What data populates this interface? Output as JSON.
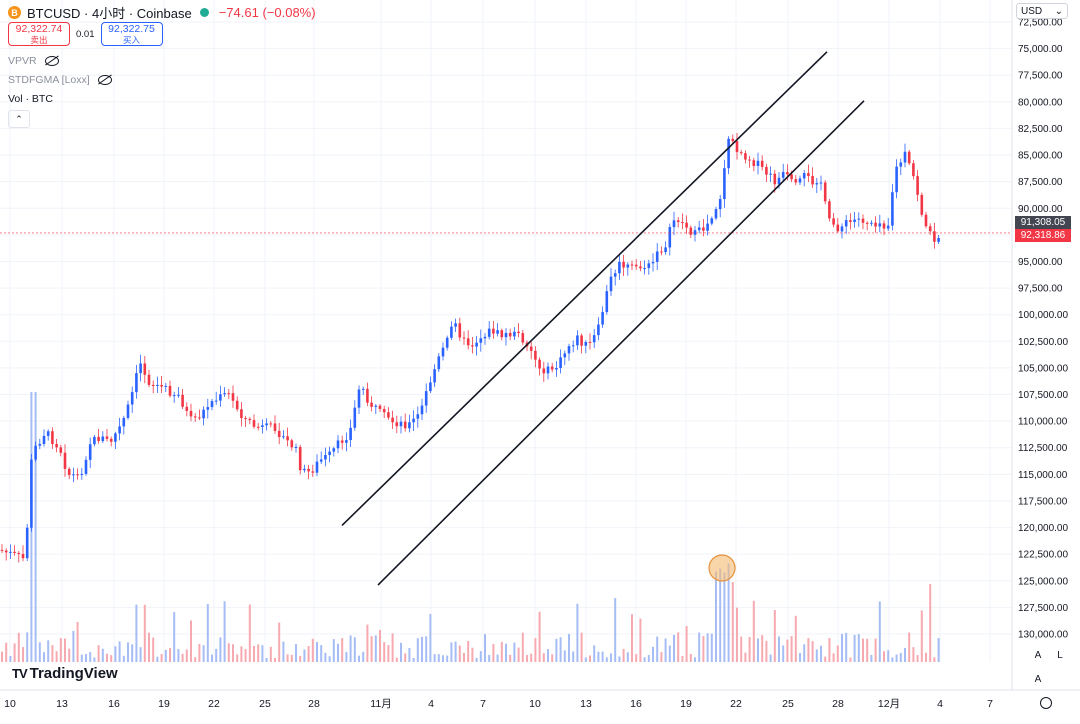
{
  "header": {
    "symbol_title": "BTCUSD · 4小时 · Coinbase",
    "change": "−74.61 (−0.08%)",
    "btc_icon": "B",
    "status_color": "#22ab94"
  },
  "trade": {
    "sell_price": "92,322.74",
    "sell_label": "卖出",
    "spread": "0.01",
    "buy_price": "92,322.75",
    "buy_label": "买入"
  },
  "indicators": [
    {
      "label": "VPVR",
      "icon": "eye-off-icon"
    },
    {
      "label": "STDFGMA [Loxx]",
      "icon": "eye-off-icon"
    },
    {
      "label": "Vol · BTC"
    }
  ],
  "collapse_glyph": "⌃",
  "currency": {
    "label": "USD",
    "glyph": "⌄"
  },
  "price_axis": {
    "ticks": [
      "72,500.00",
      "75,000.00",
      "77,500.00",
      "80,000.00",
      "82,500.00",
      "85,000.00",
      "87,500.00",
      "90,000.00",
      "92,500.00",
      "95,000.00",
      "97,500.00",
      "100,000.00",
      "102,500.00",
      "105,000.00",
      "107,500.00",
      "110,000.00",
      "112,500.00",
      "115,000.00",
      "117,500.00",
      "120,000.00",
      "122,500.00",
      "125,000.00",
      "127,500.00",
      "130,000.00"
    ],
    "last_price_tag": "91,308.05",
    "current_price_tag": "92,318.86",
    "scale_buttons": [
      "A",
      "L"
    ]
  },
  "time_axis": {
    "ticks": [
      "10",
      "13",
      "16",
      "19",
      "22",
      "25",
      "28",
      "11月",
      "4",
      "7",
      "10",
      "13",
      "16",
      "19",
      "22",
      "25",
      "28",
      "12月",
      "4",
      "7"
    ]
  },
  "branding": {
    "logo_mark": "TV",
    "logo_text": "TradingView"
  },
  "colors": {
    "up": "#f23645",
    "down": "#2962ff",
    "vol_up": "#f7a9b0",
    "vol_down": "#a5bcf5",
    "highlight": "#f5b971"
  },
  "chart_data": {
    "type": "candlestick",
    "inverted_price_scale": true,
    "ylim": [
      71500,
      131500
    ],
    "x_ticks": [
      "10",
      "13",
      "16",
      "19",
      "22",
      "25",
      "28",
      "11月",
      "4",
      "7",
      "10",
      "13",
      "16",
      "19",
      "22",
      "25",
      "28",
      "12月",
      "4",
      "7"
    ],
    "close_path": [
      [
        0,
        122100
      ],
      [
        25,
        123000
      ],
      [
        32,
        113000
      ],
      [
        45,
        111000
      ],
      [
        60,
        112500
      ],
      [
        68,
        115000
      ],
      [
        80,
        115200
      ],
      [
        90,
        112000
      ],
      [
        100,
        111500
      ],
      [
        110,
        112000
      ],
      [
        122,
        110300
      ],
      [
        130,
        108200
      ],
      [
        140,
        104500
      ],
      [
        150,
        106500
      ],
      [
        160,
        106700
      ],
      [
        170,
        107200
      ],
      [
        180,
        107700
      ],
      [
        190,
        110000
      ],
      [
        200,
        109500
      ],
      [
        210,
        108300
      ],
      [
        220,
        107800
      ],
      [
        228,
        107400
      ],
      [
        235,
        108500
      ],
      [
        245,
        109800
      ],
      [
        255,
        110500
      ],
      [
        265,
        110700
      ],
      [
        275,
        110500
      ],
      [
        285,
        111800
      ],
      [
        295,
        112500
      ],
      [
        302,
        114800
      ],
      [
        310,
        114800
      ],
      [
        320,
        113700
      ],
      [
        330,
        113200
      ],
      [
        340,
        112000
      ],
      [
        350,
        111000
      ],
      [
        360,
        106500
      ],
      [
        370,
        108300
      ],
      [
        380,
        109300
      ],
      [
        390,
        110000
      ],
      [
        400,
        110200
      ],
      [
        410,
        110300
      ],
      [
        420,
        109300
      ],
      [
        428,
        106800
      ],
      [
        438,
        104300
      ],
      [
        448,
        102300
      ],
      [
        455,
        100200
      ],
      [
        462,
        102500
      ],
      [
        472,
        102800
      ],
      [
        482,
        102000
      ],
      [
        492,
        101400
      ],
      [
        500,
        102000
      ],
      [
        510,
        101800
      ],
      [
        520,
        102000
      ],
      [
        530,
        103000
      ],
      [
        538,
        104800
      ],
      [
        548,
        105300
      ],
      [
        558,
        104800
      ],
      [
        568,
        103000
      ],
      [
        578,
        102200
      ],
      [
        588,
        103100
      ],
      [
        598,
        101500
      ],
      [
        605,
        98600
      ],
      [
        612,
        96300
      ],
      [
        620,
        95300
      ],
      [
        630,
        95600
      ],
      [
        640,
        95500
      ],
      [
        650,
        95500
      ],
      [
        660,
        94000
      ],
      [
        665,
        93500
      ],
      [
        675,
        90800
      ],
      [
        685,
        91600
      ],
      [
        695,
        92500
      ],
      [
        705,
        91800
      ],
      [
        712,
        90600
      ],
      [
        720,
        89100
      ],
      [
        725,
        85600
      ],
      [
        730,
        83000
      ],
      [
        735,
        84300
      ],
      [
        745,
        85000
      ],
      [
        755,
        85700
      ],
      [
        765,
        86600
      ],
      [
        775,
        87500
      ],
      [
        785,
        86800
      ],
      [
        795,
        88100
      ],
      [
        805,
        87000
      ],
      [
        812,
        87500
      ],
      [
        820,
        87000
      ],
      [
        828,
        91200
      ],
      [
        838,
        91800
      ],
      [
        848,
        91400
      ],
      [
        858,
        91000
      ],
      [
        868,
        91200
      ],
      [
        878,
        91300
      ],
      [
        888,
        91600
      ],
      [
        895,
        86500
      ],
      [
        905,
        85000
      ],
      [
        915,
        87500
      ],
      [
        922,
        90500
      ],
      [
        928,
        92200
      ],
      [
        935,
        93000
      ],
      [
        940,
        92319
      ]
    ],
    "volume_relative": "bars scaled to pane height; tallest spike near x≈735 (22 Nov)",
    "annotations": [
      {
        "type": "trend_line",
        "from": {
          "date": "29 Oct",
          "price": 119800
        },
        "to": {
          "date": "24 Nov",
          "price": 75300
        }
      },
      {
        "type": "trend_line",
        "from": {
          "date": "30 Oct",
          "price": 125400
        },
        "to": {
          "date": "25 Nov",
          "price": 79900
        }
      },
      {
        "type": "circle_marker",
        "date": "21 Nov",
        "on": "volume"
      }
    ],
    "last_price": 91308.05,
    "current_price": 92318.86
  }
}
